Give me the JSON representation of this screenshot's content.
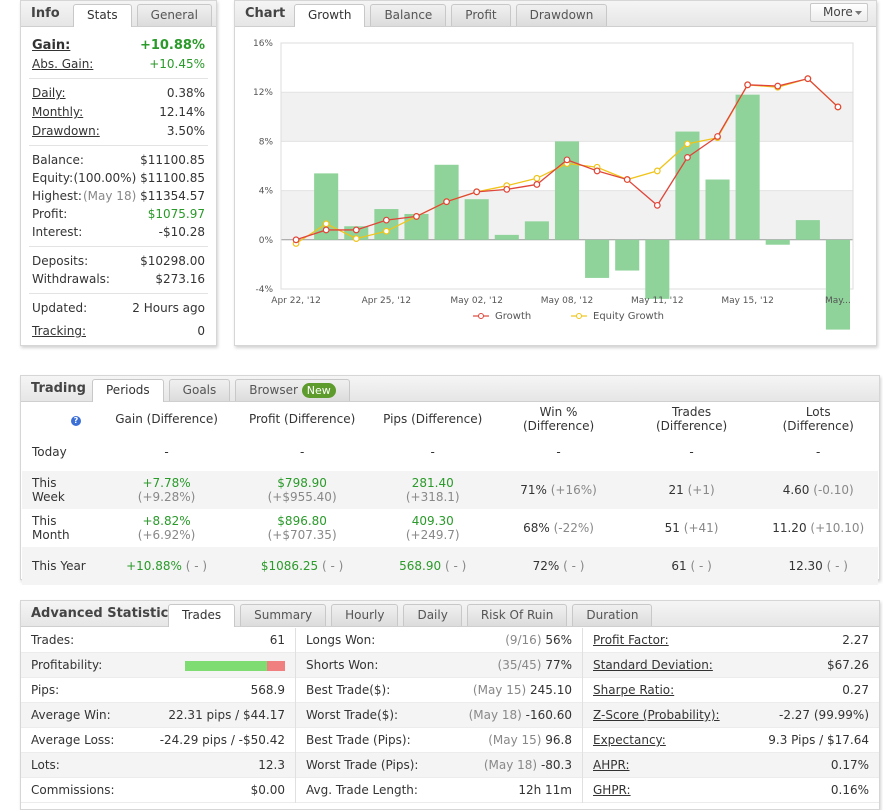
{
  "info": {
    "title": "Info",
    "tabs": [
      "Stats",
      "General"
    ],
    "gain_label": "Gain:",
    "gain": "+10.88%",
    "abs_gain_label": "Abs. Gain:",
    "abs_gain": "+10.45%",
    "daily_label": "Daily:",
    "daily": "0.38%",
    "monthly_label": "Monthly:",
    "monthly": "12.14%",
    "drawdown_label": "Drawdown:",
    "drawdown": "3.50%",
    "balance_label": "Balance:",
    "balance": "$11100.85",
    "equity_label": "Equity:",
    "equity_pct": "(100.00%)",
    "equity": "$11100.85",
    "highest_label": "Highest:",
    "highest_date": "(May 18)",
    "highest": "$11354.57",
    "profit_label": "Profit:",
    "profit": "$1075.97",
    "interest_label": "Interest:",
    "interest": "-$10.28",
    "deposits_label": "Deposits:",
    "deposits": "$10298.00",
    "withdrawals_label": "Withdrawals:",
    "withdrawals": "$273.16",
    "updated_label": "Updated:",
    "updated": "2 Hours ago",
    "tracking_label": "Tracking:",
    "tracking": "0"
  },
  "chart": {
    "title": "Chart",
    "tabs": [
      "Growth",
      "Balance",
      "Profit",
      "Drawdown"
    ],
    "more": "More",
    "more_icon": "chevron-down"
  },
  "chart_data": {
    "type": "line",
    "x": [
      "Apr 22, '12",
      "",
      "",
      "Apr 25, '12",
      "",
      "",
      "May 02, '12",
      "",
      "",
      "May 08, '12",
      "",
      "",
      "May 11, '12",
      "",
      "",
      "May 15, '12",
      "",
      "",
      "May..."
    ],
    "xtick_labels": [
      "Apr 22, '12",
      "Apr 25, '12",
      "May 02, '12",
      "May 08, '12",
      "May 11, '12",
      "May 15, '12",
      "May..."
    ],
    "yticks": [
      "16%",
      "12%",
      "8%",
      "4%",
      "0%",
      "-4%"
    ],
    "ylim": [
      -4,
      16
    ],
    "series": [
      {
        "name": "Growth",
        "color": "#e0453a",
        "values": [
          0,
          0.8,
          0.8,
          1.6,
          1.9,
          3.1,
          3.9,
          4.1,
          4.5,
          6.5,
          5.6,
          4.9,
          2.8,
          6.7,
          8.4,
          12.6,
          12.5,
          13.1,
          10.8
        ]
      },
      {
        "name": "Equity Growth",
        "color": "#f0c419",
        "values": [
          -0.3,
          1.3,
          0.1,
          0.7,
          1.9,
          3.1,
          3.9,
          4.4,
          5.0,
          6.2,
          5.9,
          4.9,
          5.6,
          7.8,
          8.3,
          12.6,
          12.4,
          13.1,
          10.8
        ]
      }
    ],
    "bars": {
      "color": "#8fd39a",
      "values": [
        null,
        5.4,
        1.1,
        2.5,
        2.1,
        6.1,
        3.3,
        0.4,
        1.5,
        8.0,
        -3.1,
        -2.5,
        -4.8,
        8.8,
        4.9,
        11.8,
        -0.4,
        1.6,
        -7.3
      ]
    }
  },
  "trading": {
    "title": "Trading",
    "tabs": [
      "Periods",
      "Goals",
      "Browser"
    ],
    "new_badge": "New",
    "info_icon": "question-icon",
    "columns": [
      "Gain (Difference)",
      "Profit (Difference)",
      "Pips (Difference)",
      "Win % (Difference)",
      "Trades (Difference)",
      "Lots (Difference)"
    ],
    "rows": [
      {
        "period": "Today",
        "gain": "-",
        "gain_d": "",
        "profit": "-",
        "profit_d": "",
        "pips": "-",
        "pips_d": "",
        "win": "-",
        "win_d": "",
        "trades": "-",
        "trades_d": "",
        "lots": "-",
        "lots_d": ""
      },
      {
        "period": "This Week",
        "gain": "+7.78%",
        "gain_d": "(+9.28%)",
        "profit": "$798.90",
        "profit_d": "(+$955.40)",
        "pips": "281.40",
        "pips_d": "(+318.1)",
        "win": "71%",
        "win_d": "(+16%)",
        "trades": "21",
        "trades_d": "(+1)",
        "lots": "4.60",
        "lots_d": "(-0.10)"
      },
      {
        "period": "This Month",
        "gain": "+8.82%",
        "gain_d": "(+6.92%)",
        "profit": "$896.80",
        "profit_d": "(+$707.35)",
        "pips": "409.30",
        "pips_d": "(+249.7)",
        "win": "68%",
        "win_d": "(-22%)",
        "trades": "51",
        "trades_d": "(+41)",
        "lots": "11.20",
        "lots_d": "(+10.10)"
      },
      {
        "period": "This Year",
        "gain": "+10.88%",
        "gain_d": "( - )",
        "profit": "$1086.25",
        "profit_d": "( - )",
        "pips": "568.90",
        "pips_d": "( - )",
        "win": "72%",
        "win_d": "( - )",
        "trades": "61",
        "trades_d": "( - )",
        "lots": "12.30",
        "lots_d": "( - )"
      }
    ]
  },
  "advanced": {
    "title": "Advanced Statistics",
    "tabs": [
      "Trades",
      "Summary",
      "Hourly",
      "Daily",
      "Risk Of Ruin",
      "Duration"
    ],
    "col1": [
      {
        "label": "Trades:",
        "value": "61"
      },
      {
        "label": "Profitability:",
        "value": "",
        "profitability": 0.82
      },
      {
        "label": "Pips:",
        "value": "568.9"
      },
      {
        "label": "Average Win:",
        "value": "22.31 pips / $44.17"
      },
      {
        "label": "Average Loss:",
        "value": "-24.29 pips / -$50.42"
      },
      {
        "label": "Lots:",
        "value": "12.3"
      },
      {
        "label": "Commissions:",
        "value": "$0.00"
      }
    ],
    "col2": [
      {
        "label": "Longs Won:",
        "note": "(9/16)",
        "value": "56%"
      },
      {
        "label": "Shorts Won:",
        "note": "(35/45)",
        "value": "77%"
      },
      {
        "label": "Best Trade($):",
        "note": "(May 15)",
        "value": "245.10"
      },
      {
        "label": "Worst Trade($):",
        "note": "(May 18)",
        "value": "-160.60"
      },
      {
        "label": "Best Trade (Pips):",
        "note": "(May 15)",
        "value": "96.8"
      },
      {
        "label": "Worst Trade (Pips):",
        "note": "(May 18)",
        "value": "-80.3"
      },
      {
        "label": "Avg. Trade Length:",
        "note": "",
        "value": "12h 11m"
      }
    ],
    "col3": [
      {
        "label": "Profit Factor:",
        "value": "2.27"
      },
      {
        "label": "Standard Deviation:",
        "value": "$67.26"
      },
      {
        "label": "Sharpe Ratio:",
        "value": "0.27"
      },
      {
        "label": "Z-Score (Probability):",
        "value": "-2.27 (99.99%)"
      },
      {
        "label": "Expectancy:",
        "value": "9.3 Pips / $17.64"
      },
      {
        "label": "AHPR:",
        "value": "0.17%"
      },
      {
        "label": "GHPR:",
        "value": "0.16%"
      }
    ]
  }
}
